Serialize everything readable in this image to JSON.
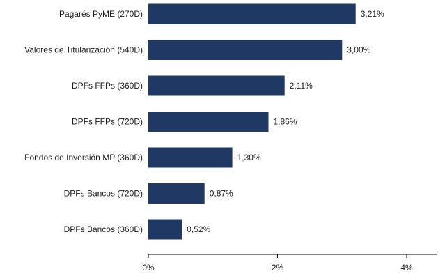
{
  "chart_data": {
    "type": "bar",
    "orientation": "horizontal",
    "categories": [
      "Pagarés PyME (270D)",
      "Valores de Titularización (540D)",
      "DPFs FFPs (360D)",
      "DPFs FFPs (720D)",
      "Fondos de Inversión MP (360D)",
      "DPFs Bancos (720D)",
      "DPFs Bancos (360D)"
    ],
    "values": [
      3.21,
      3.0,
      2.11,
      1.86,
      1.3,
      0.87,
      0.52
    ],
    "value_labels": [
      "3,21%",
      "3,00%",
      "2,11%",
      "1,86%",
      "1,30%",
      "0,87%",
      "0,52%"
    ],
    "xlim": [
      0,
      4
    ],
    "xticks": [
      0,
      2,
      4
    ],
    "xtick_labels": [
      "0%",
      "2%",
      "4%"
    ],
    "title": "",
    "xlabel": "",
    "ylabel": "",
    "grid": false,
    "bar_color": "#1f3864"
  }
}
